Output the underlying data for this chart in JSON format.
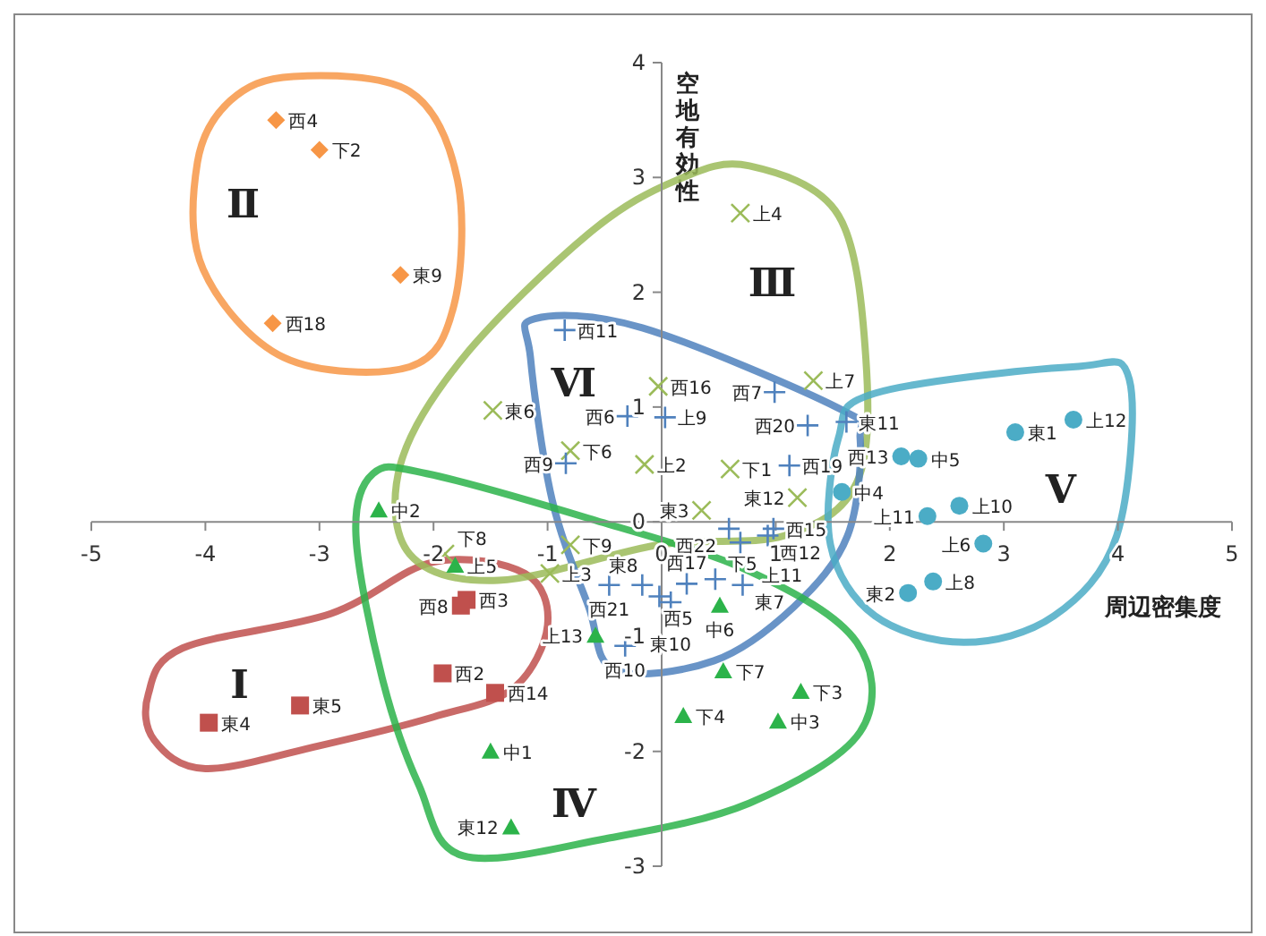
{
  "chart_data": {
    "type": "scatter",
    "xlabel": "周辺密集度",
    "ylabel": "空地有効性",
    "xlim": [
      -5,
      5
    ],
    "ylim": [
      -3,
      4
    ],
    "xticks": [
      -5,
      -4,
      -3,
      -2,
      -1,
      0,
      1,
      2,
      3,
      4,
      5
    ],
    "yticks": [
      -3,
      -2,
      -1,
      0,
      1,
      2,
      3,
      4
    ],
    "series": [
      {
        "color": "#c0504d",
        "marker": "square",
        "x": [
          -3.97,
          -3.17,
          -1.92,
          -1.46,
          -1.71,
          -1.76
        ],
        "values": [
          -1.75,
          -1.6,
          -1.32,
          -1.49,
          -0.68,
          -0.73
        ],
        "value_labels": [
          "東4",
          "東5",
          "西2",
          "西14",
          "西3",
          "西8"
        ]
      },
      {
        "color": "#f79646",
        "marker": "diamond",
        "x": [
          -3.38,
          -3.0,
          -2.29,
          -3.41
        ],
        "values": [
          3.5,
          3.24,
          2.15,
          1.73
        ],
        "value_labels": [
          "西4",
          "下2",
          "東9",
          "西18"
        ]
      },
      {
        "color": "#9bbb59",
        "marker": "cross",
        "x": [
          0.69,
          -0.03,
          -1.48,
          -0.8,
          -0.15,
          0.6,
          0.35,
          1.33,
          1.19,
          -1.9,
          -0.8,
          -0.98
        ],
        "values": [
          2.69,
          1.18,
          0.97,
          0.62,
          0.5,
          0.46,
          0.1,
          1.23,
          0.21,
          -0.28,
          -0.2,
          -0.45
        ],
        "value_labels": [
          "上4",
          "西16",
          "東6",
          "下6",
          "上2",
          "下1",
          "東3",
          "上7",
          "東12",
          "下8",
          "下9",
          "上3"
        ]
      },
      {
        "color": "#4f81bd",
        "marker": "plus",
        "x": [
          -0.85,
          -0.3,
          0.03,
          -0.84,
          0.99,
          1.28,
          1.62,
          1.12,
          0.59,
          0.69,
          0.98,
          0.93,
          -0.46,
          -0.17,
          -0.02,
          0.08,
          0.22,
          0.47,
          0.71,
          -0.32
        ],
        "values": [
          1.67,
          0.92,
          0.91,
          0.51,
          1.13,
          0.84,
          0.87,
          0.49,
          -0.06,
          -0.18,
          -0.06,
          -0.12,
          -0.55,
          -0.55,
          -0.65,
          -0.7,
          -0.54,
          -0.5,
          -0.55,
          -1.08
        ],
        "value_labels": [
          "西11",
          "西6",
          "上9",
          "西9",
          "西7",
          "西20",
          "東11",
          "西19",
          "西22",
          "上11",
          "西15",
          "西12",
          "西21",
          "西5",
          "東8",
          "東10",
          "西17",
          "下5",
          "東7",
          "西10"
        ]
      },
      {
        "color": "#2cb34a",
        "marker": "triangle",
        "x": [
          -2.48,
          -1.81,
          -0.58,
          0.51,
          0.54,
          0.19,
          1.22,
          1.02,
          -1.5,
          -1.32
        ],
        "values": [
          0.1,
          -0.38,
          -0.99,
          -0.73,
          -1.3,
          -1.69,
          -1.48,
          -1.74,
          -2.0,
          -2.66
        ],
        "value_labels": [
          "中2",
          "上5",
          "上13",
          "中6",
          "下7",
          "下4",
          "下3",
          "中3",
          "中1",
          "東12"
        ]
      },
      {
        "color": "#4bacc6",
        "marker": "circle",
        "x": [
          1.58,
          2.1,
          2.25,
          3.1,
          3.61,
          2.61,
          2.33,
          2.82,
          2.16,
          2.38
        ],
        "values": [
          0.26,
          0.57,
          0.55,
          0.78,
          0.89,
          0.14,
          0.05,
          -0.19,
          -0.62,
          -0.52
        ],
        "value_labels": [
          "中4",
          "西13",
          "中5",
          "東1",
          "上12",
          "上10",
          "上11",
          "上6",
          "東2",
          "上8"
        ]
      }
    ],
    "annotations": [
      "Ⅰ",
      "Ⅱ",
      "Ⅲ",
      "Ⅵ",
      "Ⅳ",
      "Ⅴ"
    ]
  }
}
